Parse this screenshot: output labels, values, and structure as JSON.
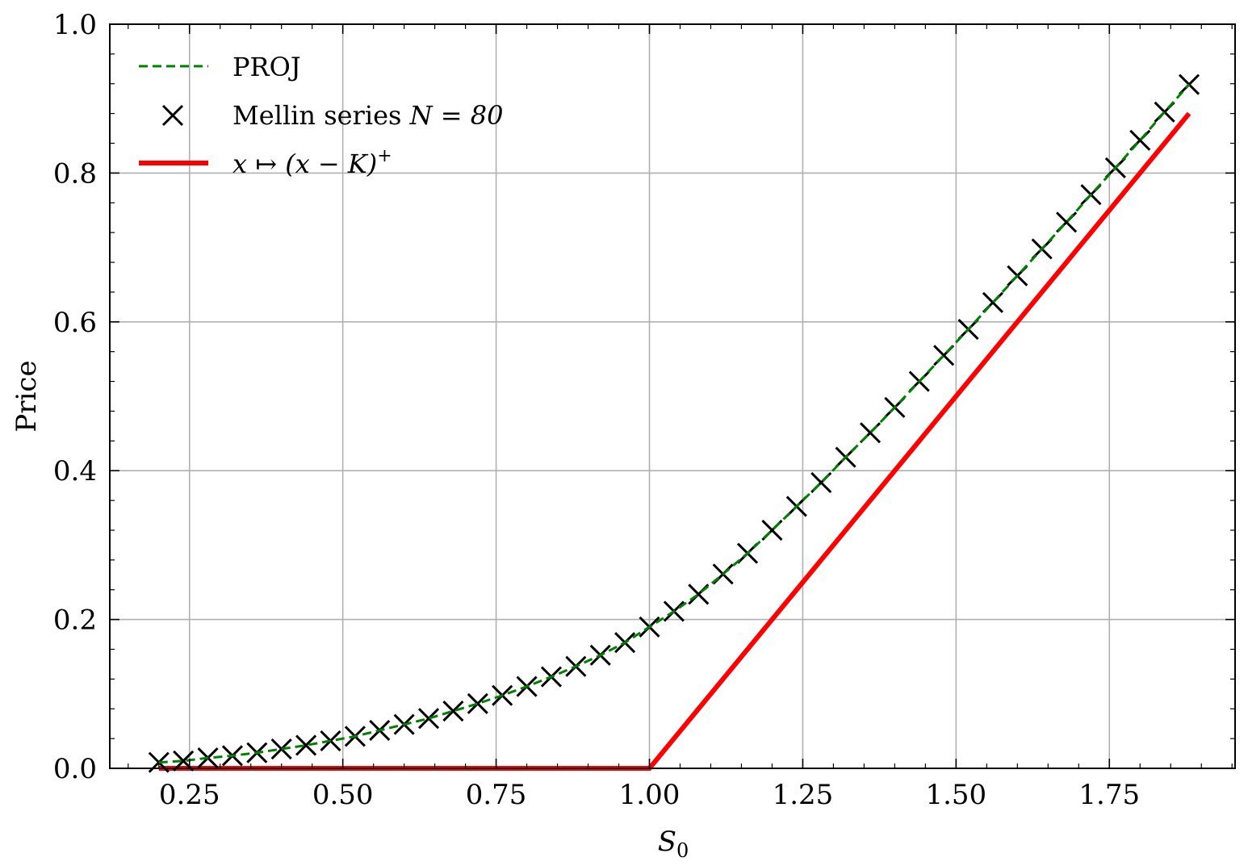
{
  "chart_data": {
    "type": "line",
    "xlabel": "S",
    "xlabel_subscript": "0",
    "ylabel": "Price",
    "xlim": [
      0.12,
      1.955
    ],
    "ylim": [
      0.0,
      1.0
    ],
    "x_ticks": [
      0.25,
      0.5,
      0.75,
      1.0,
      1.25,
      1.5,
      1.75
    ],
    "x_tick_labels": [
      "0.25",
      "0.50",
      "0.75",
      "1.00",
      "1.25",
      "1.50",
      "1.75"
    ],
    "y_ticks": [
      0.0,
      0.2,
      0.4,
      0.6,
      0.8,
      1.0
    ],
    "y_tick_labels": [
      "0.0",
      "0.2",
      "0.4",
      "0.6",
      "0.8",
      "1.0"
    ],
    "grid": true,
    "legend_position": "top-left",
    "strike": 1.0,
    "series": [
      {
        "name": "PROJ",
        "style": "dashed-line",
        "color": "#008000",
        "x": [
          0.2,
          0.24,
          0.28,
          0.32,
          0.36,
          0.4,
          0.44,
          0.48,
          0.52,
          0.56,
          0.6,
          0.64,
          0.68,
          0.72,
          0.76,
          0.8,
          0.84,
          0.88,
          0.92,
          0.96,
          1.0,
          1.04,
          1.08,
          1.12,
          1.16,
          1.2,
          1.24,
          1.28,
          1.32,
          1.36,
          1.4,
          1.44,
          1.48,
          1.52,
          1.56,
          1.6,
          1.64,
          1.68,
          1.72,
          1.76,
          1.8,
          1.84,
          1.88
        ],
        "y": [
          0.008,
          0.01,
          0.014,
          0.017,
          0.021,
          0.026,
          0.031,
          0.037,
          0.043,
          0.051,
          0.059,
          0.067,
          0.077,
          0.087,
          0.098,
          0.11,
          0.123,
          0.137,
          0.152,
          0.169,
          0.19,
          0.211,
          0.234,
          0.261,
          0.289,
          0.32,
          0.352,
          0.384,
          0.418,
          0.451,
          0.485,
          0.52,
          0.555,
          0.59,
          0.626,
          0.662,
          0.698,
          0.734,
          0.771,
          0.807,
          0.844,
          0.882,
          0.919
        ]
      },
      {
        "name": "Mellin series",
        "name_math": "N = 80",
        "style": "x-markers",
        "color": "#000000",
        "x": [
          0.2,
          0.24,
          0.28,
          0.32,
          0.36,
          0.4,
          0.44,
          0.48,
          0.52,
          0.56,
          0.6,
          0.64,
          0.68,
          0.72,
          0.76,
          0.8,
          0.84,
          0.88,
          0.92,
          0.96,
          1.0,
          1.04,
          1.08,
          1.12,
          1.16,
          1.2,
          1.24,
          1.28,
          1.32,
          1.36,
          1.4,
          1.44,
          1.48,
          1.52,
          1.56,
          1.6,
          1.64,
          1.68,
          1.72,
          1.76,
          1.8,
          1.84,
          1.88
        ],
        "y": [
          0.008,
          0.01,
          0.014,
          0.017,
          0.021,
          0.026,
          0.031,
          0.037,
          0.043,
          0.051,
          0.059,
          0.067,
          0.077,
          0.087,
          0.098,
          0.11,
          0.123,
          0.137,
          0.152,
          0.169,
          0.19,
          0.211,
          0.234,
          0.261,
          0.289,
          0.32,
          0.352,
          0.384,
          0.418,
          0.451,
          0.485,
          0.52,
          0.555,
          0.59,
          0.626,
          0.662,
          0.698,
          0.734,
          0.771,
          0.807,
          0.844,
          0.882,
          0.919
        ]
      },
      {
        "name_math": "x ↦ (x − K)",
        "name_sup": "+",
        "style": "solid-line",
        "color": "#ff0000",
        "x": [
          0.2,
          1.0,
          1.88
        ],
        "y": [
          0.0,
          0.0,
          0.88
        ]
      }
    ]
  }
}
